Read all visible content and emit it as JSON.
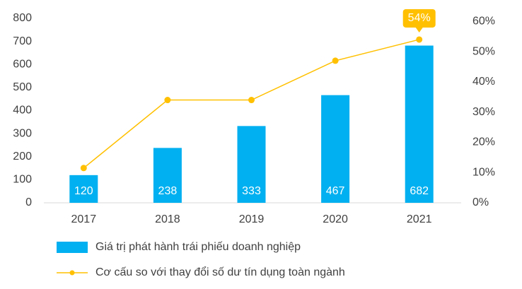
{
  "chart_data": {
    "type": "bar-line",
    "categories": [
      "2017",
      "2018",
      "2019",
      "2020",
      "2021"
    ],
    "series": [
      {
        "name": "Giá trị phát hành trái phiếu doanh nghiệp",
        "type": "bar",
        "color": "#00b0f0",
        "values": [
          120,
          238,
          333,
          467,
          682
        ]
      },
      {
        "name": "Cơ cấu so với thay đổi số dư tín dụng toàn ngành",
        "type": "line",
        "axis": "y2",
        "color": "#ffc000",
        "values": [
          11.5,
          34,
          34,
          47,
          54
        ],
        "value_labels": [
          null,
          null,
          null,
          null,
          "54%"
        ]
      }
    ],
    "ylim": [
      0,
      800
    ],
    "yticks": [
      0,
      100,
      200,
      300,
      400,
      500,
      600,
      700,
      800
    ],
    "y2lim": [
      0,
      61
    ],
    "y2ticks": [
      {
        "value": 0,
        "label": "0%"
      },
      {
        "value": 10,
        "label": "10%"
      },
      {
        "value": 20,
        "label": "20%"
      },
      {
        "value": 30,
        "label": "30%"
      },
      {
        "value": 40,
        "label": "40%"
      },
      {
        "value": 50,
        "label": "50%"
      },
      {
        "value": 60,
        "label": "60%"
      }
    ],
    "grid": false,
    "legend": "bottom"
  }
}
